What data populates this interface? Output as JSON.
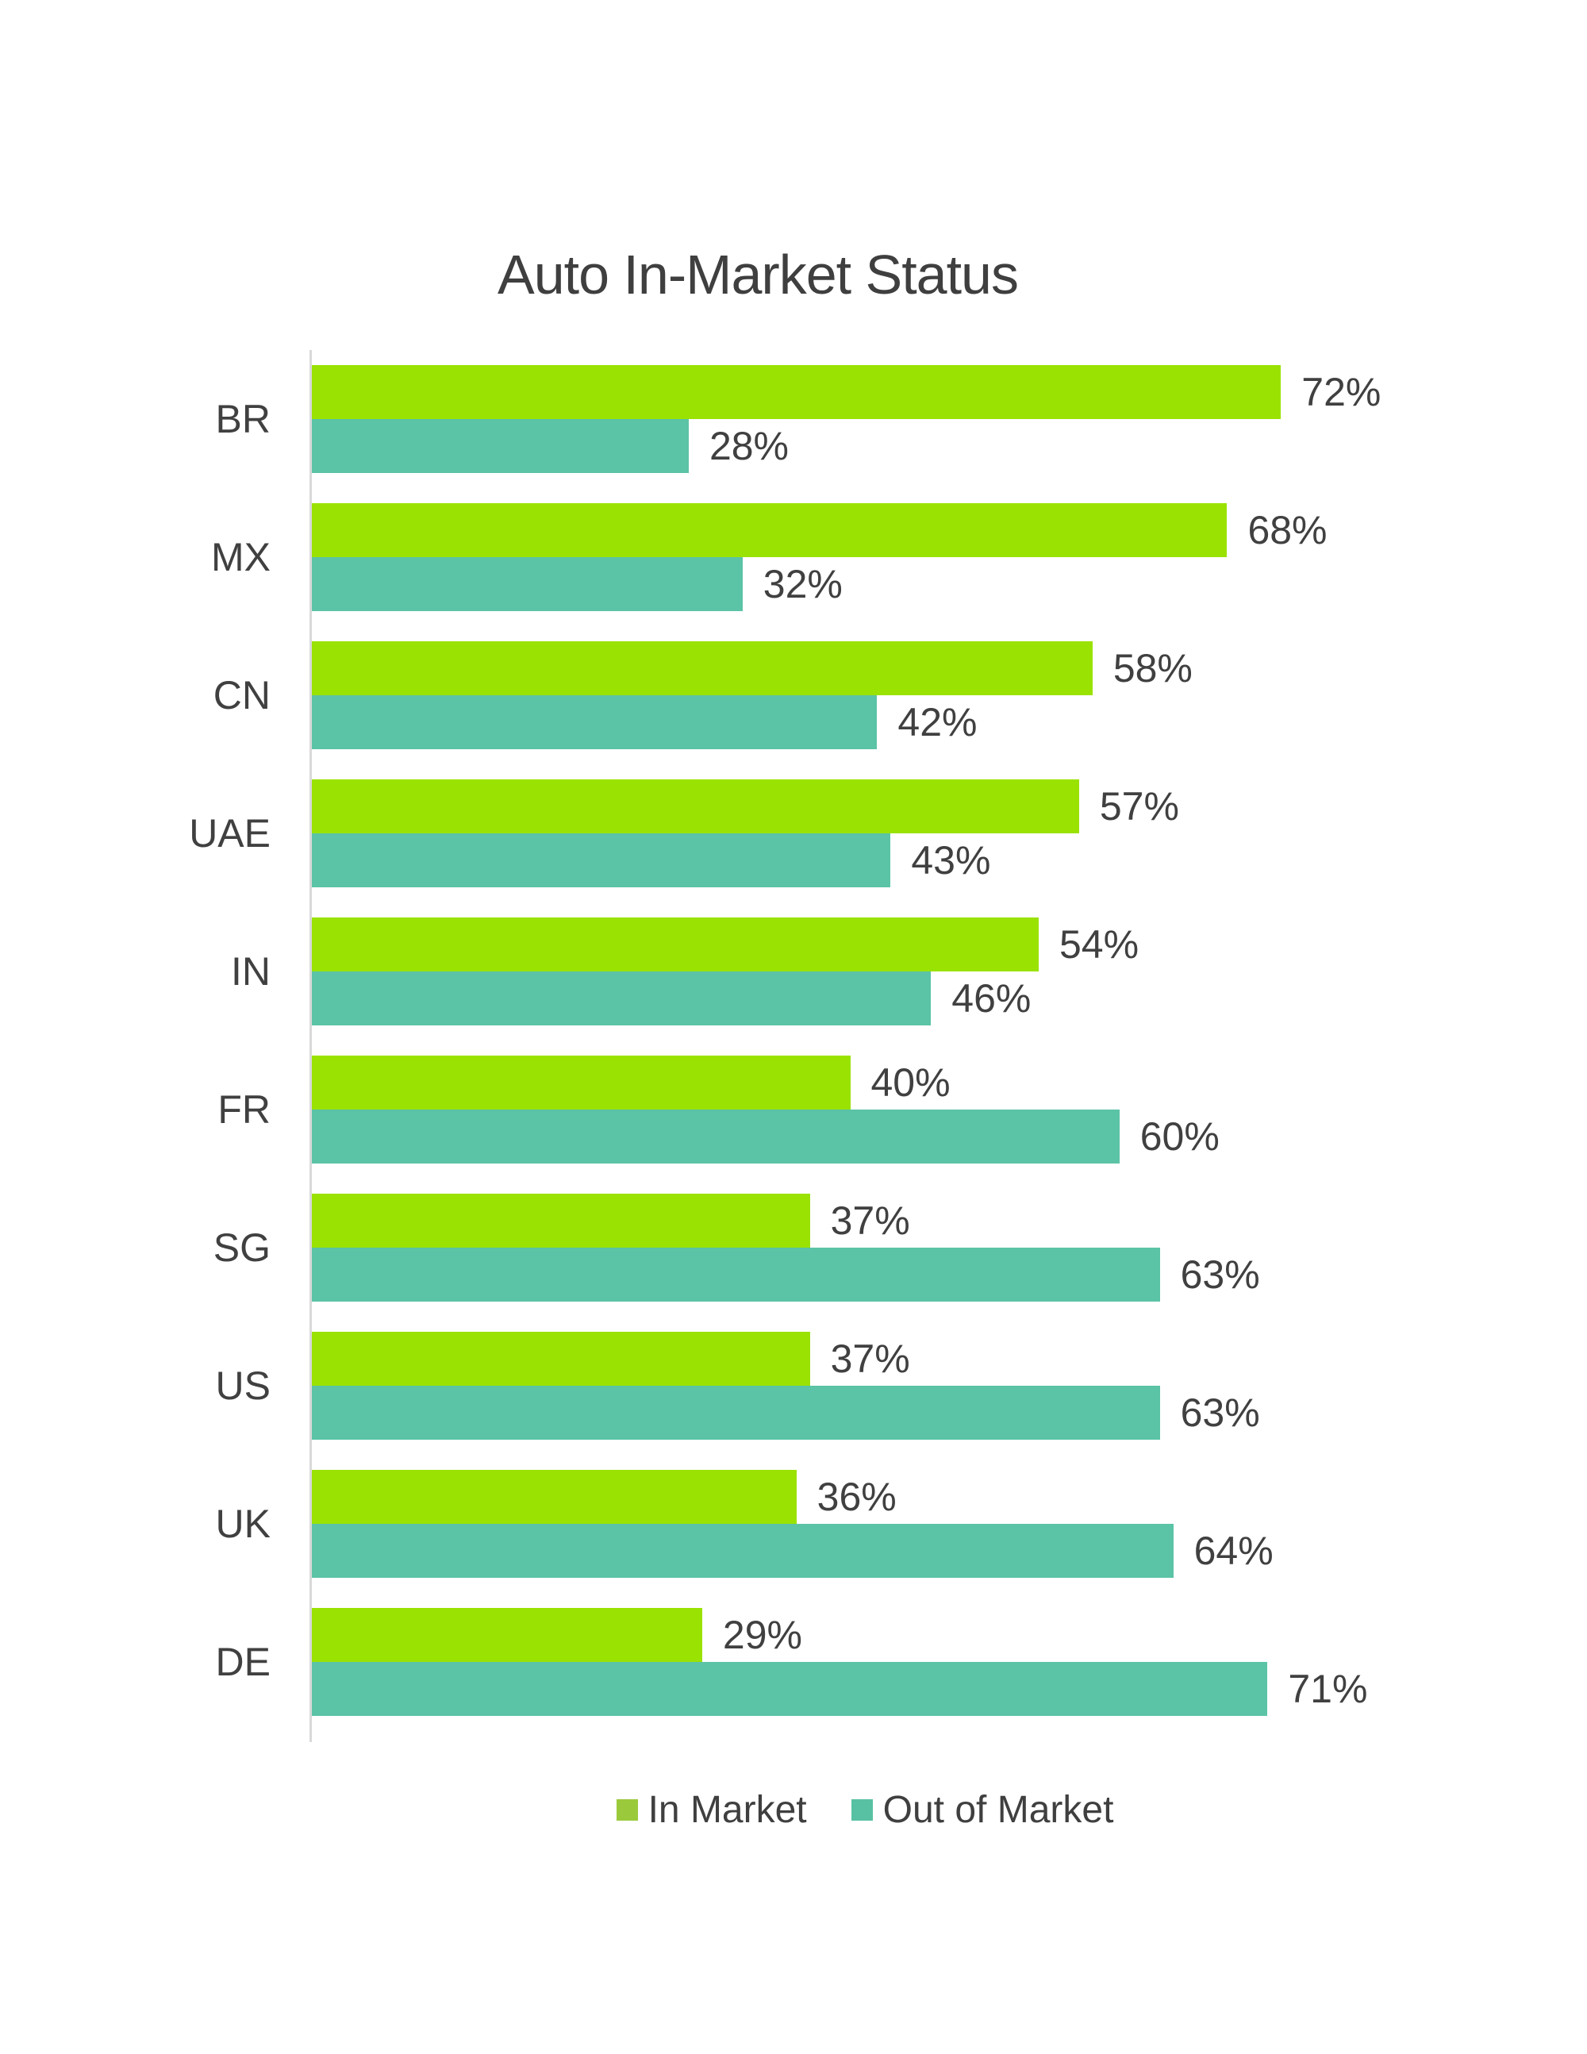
{
  "title": "Auto In-Market Status",
  "legend": [
    {
      "label": "In Market",
      "color": "#9ACA3C"
    },
    {
      "label": "Out of Market",
      "color": "#58C1A3"
    }
  ],
  "chart_data": {
    "type": "bar",
    "orientation": "horizontal",
    "title": "Auto In-Market Status",
    "xlabel": "",
    "ylabel": "",
    "categories": [
      "BR",
      "MX",
      "CN",
      "UAE",
      "IN",
      "FR",
      "SG",
      "US",
      "UK",
      "DE"
    ],
    "series": [
      {
        "name": "In Market",
        "color": "#9AE202",
        "values": [
          72,
          68,
          58,
          57,
          54,
          40,
          37,
          37,
          36,
          29
        ]
      },
      {
        "name": "Out of Market",
        "color": "#5BC3A6",
        "values": [
          28,
          32,
          42,
          43,
          46,
          60,
          63,
          63,
          64,
          71
        ]
      }
    ],
    "value_suffix": "%",
    "xlim": [
      0,
      80
    ],
    "grid": false,
    "legend_position": "bottom"
  },
  "colors": {
    "background": "#FFFFFF",
    "axis_line": "#D9D9D9",
    "text": "#404040"
  }
}
